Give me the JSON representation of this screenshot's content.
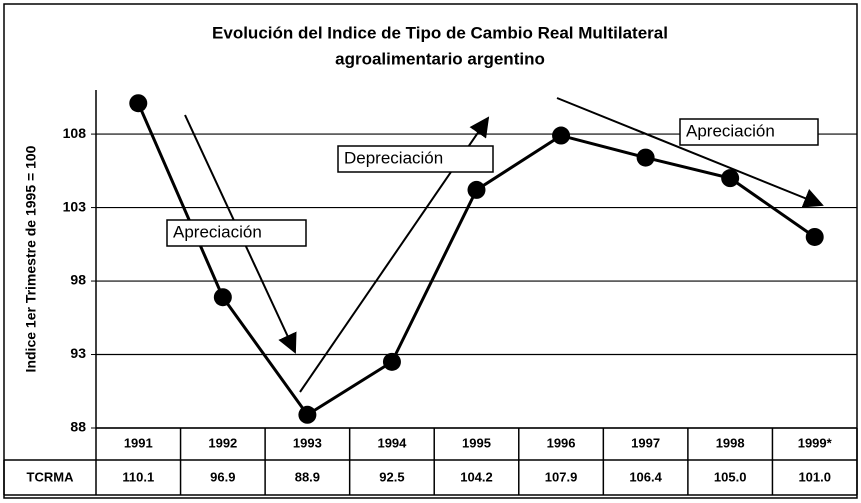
{
  "chart_data": {
    "type": "line",
    "title": [
      "Evolución del Indice de Tipo de Cambio Real Multilateral",
      "agroalimentario argentino"
    ],
    "y_label": "Indice 1er Trimestre de 1995 = 100",
    "categories": [
      "1991",
      "1992",
      "1993",
      "1994",
      "1995",
      "1996",
      "1997",
      "1998",
      "1999*"
    ],
    "series": [
      {
        "name": "TCRMA",
        "color": "#000000",
        "values": [
          110.1,
          96.9,
          88.9,
          92.5,
          104.2,
          107.9,
          106.4,
          105.0,
          101.0
        ],
        "value_labels": [
          "110.1",
          "96.9",
          "88.9",
          "92.5",
          "104.2",
          "107.9",
          "106.4",
          "105.0",
          "101.0"
        ]
      }
    ],
    "ylim": [
      88,
      111
    ],
    "yticks": [
      88,
      93,
      98,
      103,
      108
    ],
    "grid": true,
    "annotations": [
      "Apreciación",
      "Depreciación",
      "Apreciación"
    ]
  }
}
